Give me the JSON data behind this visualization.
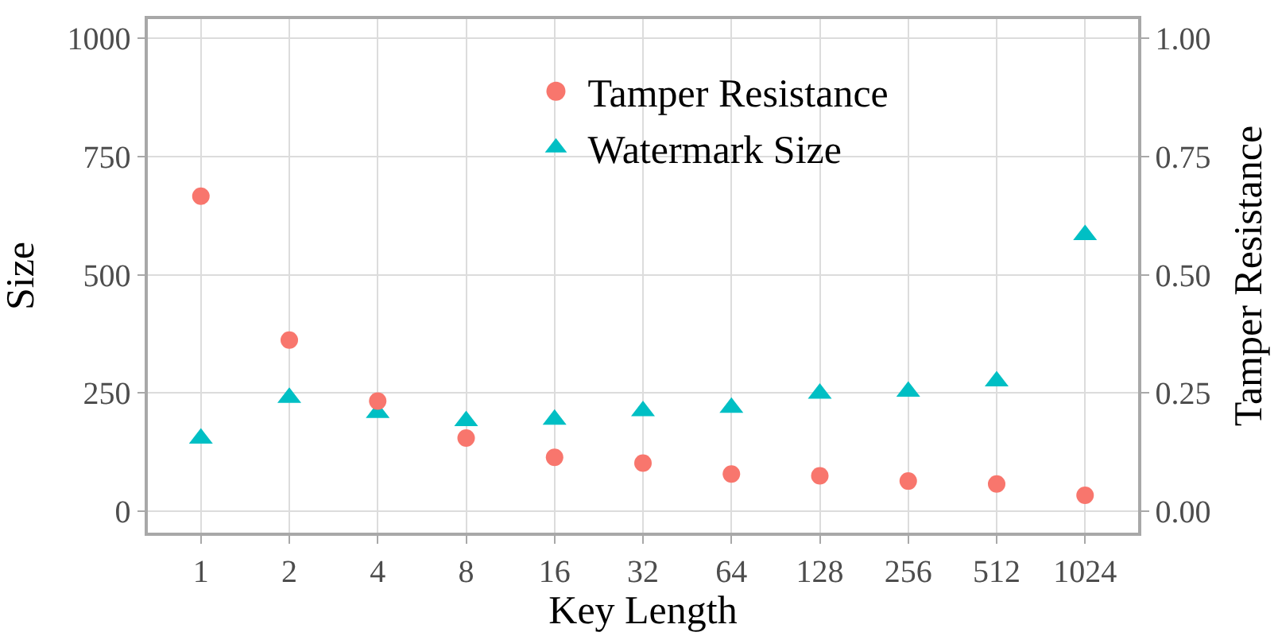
{
  "chart_data": {
    "type": "scatter",
    "xlabel": "Key Length",
    "ylabel": "Size",
    "y2label": "Tamper Resistance",
    "categories": [
      "1",
      "2",
      "4",
      "8",
      "16",
      "32",
      "64",
      "128",
      "256",
      "512",
      "1024"
    ],
    "series": [
      {
        "name": "Tamper Resistance",
        "color": "#f8766d",
        "marker": "circle",
        "axis": "y2",
        "values": [
          0.666,
          0.362,
          0.233,
          0.155,
          0.114,
          0.102,
          0.079,
          0.075,
          0.064,
          0.058,
          0.034
        ]
      },
      {
        "name": "Watermark Size",
        "color": "#00bfc4",
        "marker": "triangle",
        "values": [
          154,
          240,
          208,
          191,
          194,
          212,
          219,
          249,
          253,
          275,
          584
        ]
      }
    ],
    "ylim": [
      -45,
      1040
    ],
    "yticks": [
      0,
      250,
      500,
      750,
      1000
    ],
    "y2lim": [
      -0.045,
      1.04
    ],
    "y2ticks": [
      {
        "value": 0,
        "label": "0.00"
      },
      {
        "value": 0.25,
        "label": "0.25"
      },
      {
        "value": 0.5,
        "label": "0.50"
      },
      {
        "value": 0.75,
        "label": "0.75"
      },
      {
        "value": 1,
        "label": "1.00"
      }
    ],
    "grid": true,
    "legend": "top"
  }
}
